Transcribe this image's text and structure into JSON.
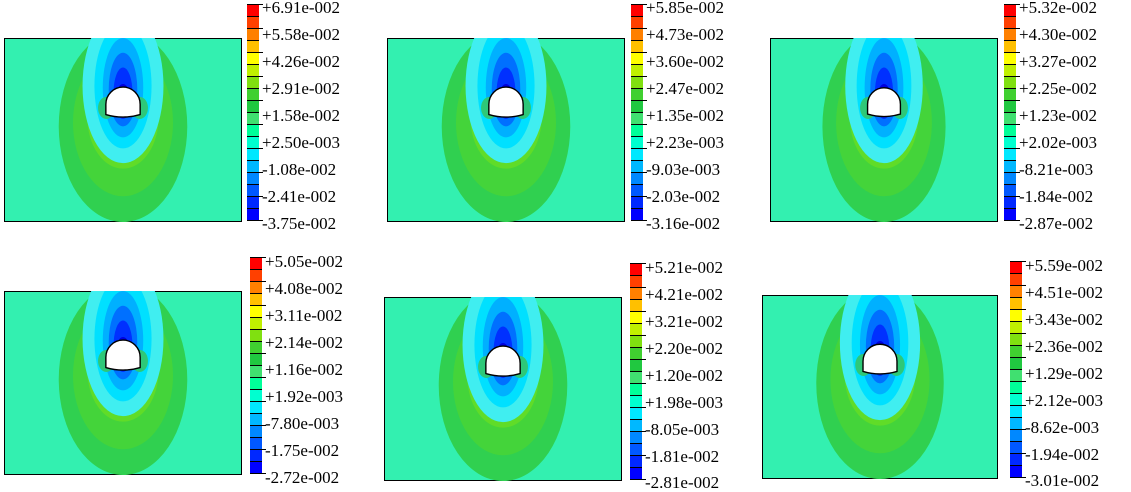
{
  "colors": {
    "background": "#33f0b0",
    "border": "#000000",
    "tunnel_fill": "#ffffff",
    "scale": [
      "#0000ff",
      "#0058ff",
      "#00b0ff",
      "#00ffff",
      "#00ff88",
      "#30d030",
      "#98e818",
      "#ffff00",
      "#ffc000",
      "#ff7000",
      "#ff0000"
    ]
  },
  "panels": [
    {
      "name": "panel-1",
      "legend": [
        "+6.91e-002",
        "+5.58e-002",
        "+4.26e-002",
        "+2.91e-002",
        "+1.58e-002",
        "+2.50e-003",
        "-1.08e-002",
        "-2.41e-002",
        "-3.75e-002"
      ]
    },
    {
      "name": "panel-2",
      "legend": [
        "+5.85e-002",
        "+4.73e-002",
        "+3.60e-002",
        "+2.47e-002",
        "+1.35e-002",
        "+2.23e-003",
        "-9.03e-003",
        "-2.03e-002",
        "-3.16e-002"
      ]
    },
    {
      "name": "panel-3",
      "legend": [
        "+5.32e-002",
        "+4.30e-002",
        "+3.27e-002",
        "+2.25e-002",
        "+1.23e-002",
        "+2.02e-003",
        "-8.21e-003",
        "-1.84e-002",
        "-2.87e-002"
      ]
    },
    {
      "name": "panel-4",
      "legend": [
        "+5.05e-002",
        "+4.08e-002",
        "+3.11e-002",
        "+2.14e-002",
        "+1.16e-002",
        "+1.92e-003",
        "-7.80e-003",
        "-1.75e-002",
        "-2.72e-002"
      ]
    },
    {
      "name": "panel-5",
      "legend": [
        "+5.21e-002",
        "+4.21e-002",
        "+3.21e-002",
        "+2.20e-002",
        "+1.20e-002",
        "+1.98e-003",
        "-8.05e-003",
        "-1.81e-002",
        "-2.81e-002"
      ]
    },
    {
      "name": "panel-6",
      "legend": [
        "+5.59e-002",
        "+4.51e-002",
        "+3.43e-002",
        "+2.36e-002",
        "+1.29e-002",
        "+2.12e-003",
        "-8.62e-003",
        "-1.94e-002",
        "-3.01e-002"
      ]
    }
  ]
}
